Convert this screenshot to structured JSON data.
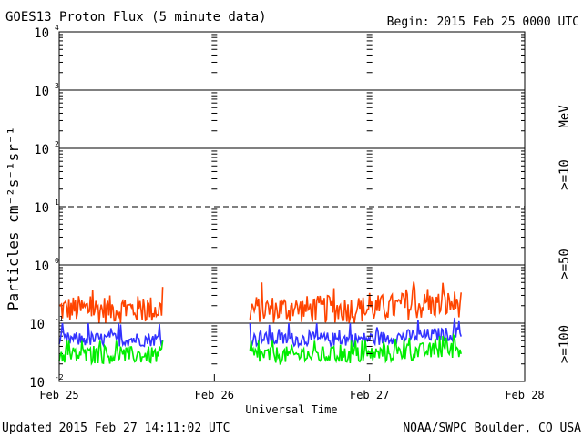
{
  "title": "GOES13 Proton Flux (5 minute data)",
  "begin_label": "Begin: 2015 Feb 25 0000 UTC",
  "updated": "Updated 2015 Feb 27 14:11:02 UTC",
  "credit": "NOAA/SWPC Boulder, CO USA",
  "colors": {
    "ge10": "#ff4400",
    "ge50": "#3333ff",
    "ge100": "#00ee00",
    "axis": "#000000"
  },
  "chart_data": {
    "type": "line",
    "title": "GOES13 Proton Flux (5 minute data)",
    "xlabel": "Universal Time",
    "ylabel": "Particles cm⁻²s⁻¹sr⁻¹",
    "y_scale": "log",
    "ylim": [
      0.01,
      10000
    ],
    "xlim": [
      "2015-02-25",
      "2015-02-28"
    ],
    "x_ticks": [
      "Feb 25",
      "Feb 26",
      "Feb 27",
      "Feb 28"
    ],
    "y_ticks": [
      {
        "base": "10",
        "exp": "4"
      },
      {
        "base": "10",
        "exp": "3"
      },
      {
        "base": "10",
        "exp": "2"
      },
      {
        "base": "10",
        "exp": "1"
      },
      {
        "base": "10",
        "exp": "0"
      },
      {
        "base": "10",
        "exp": "-1"
      },
      {
        "base": "10",
        "exp": "-2"
      }
    ],
    "grid": "horizontal at each decade",
    "unit_label": "MeV",
    "data_gaps": [
      [
        "2015-02-25 16:00",
        "2015-02-26 05:30"
      ]
    ],
    "series": [
      {
        "name": ">=10",
        "color": "#ff4400",
        "typical_range": [
          0.1,
          0.3
        ],
        "peak": 0.5
      },
      {
        "name": ">=50",
        "color": "#3333ff",
        "typical_range": [
          0.04,
          0.07
        ],
        "peak": 0.1
      },
      {
        "name": ">=100",
        "color": "#00ee00",
        "typical_range": [
          0.02,
          0.04
        ],
        "peak": 0.05
      }
    ]
  }
}
